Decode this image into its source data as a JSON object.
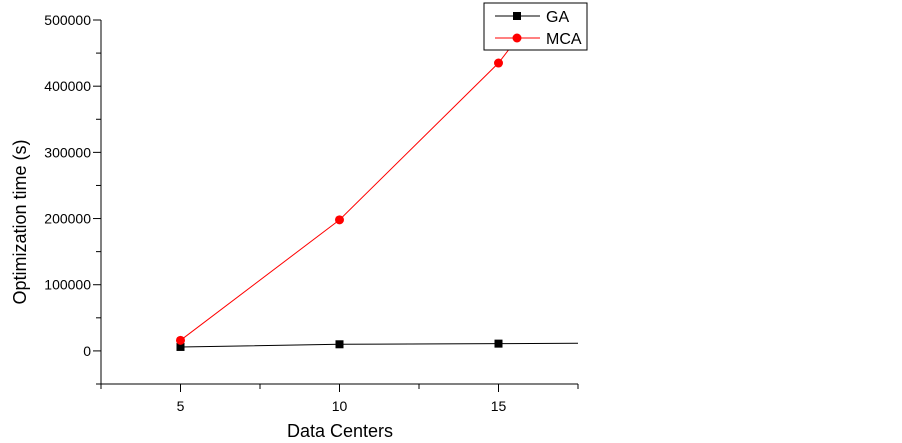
{
  "chart_data": {
    "type": "line",
    "xlabel": "Data Centers",
    "ylabel": "Optimization time (s)",
    "xlim": [
      2.5,
      17.5
    ],
    "ylim": [
      -50000,
      500000
    ],
    "x_ticks": [
      5,
      10,
      15
    ],
    "y_ticks": [
      0,
      100000,
      200000,
      300000,
      400000,
      500000
    ],
    "grid": false,
    "legend_position": "top-right",
    "series": [
      {
        "name": "GA",
        "color": "#000000",
        "marker": "square",
        "x": [
          5,
          10,
          15,
          17.5
        ],
        "y": [
          6000,
          10000,
          11000,
          11500
        ],
        "marker_x": [
          5,
          10,
          15
        ]
      },
      {
        "name": "MCA",
        "color": "#ff0000",
        "marker": "circle",
        "x": [
          5,
          10,
          15,
          16.2
        ],
        "y": [
          16000,
          198000,
          435000,
          510000
        ],
        "marker_x": [
          5,
          10,
          15
        ]
      }
    ]
  }
}
